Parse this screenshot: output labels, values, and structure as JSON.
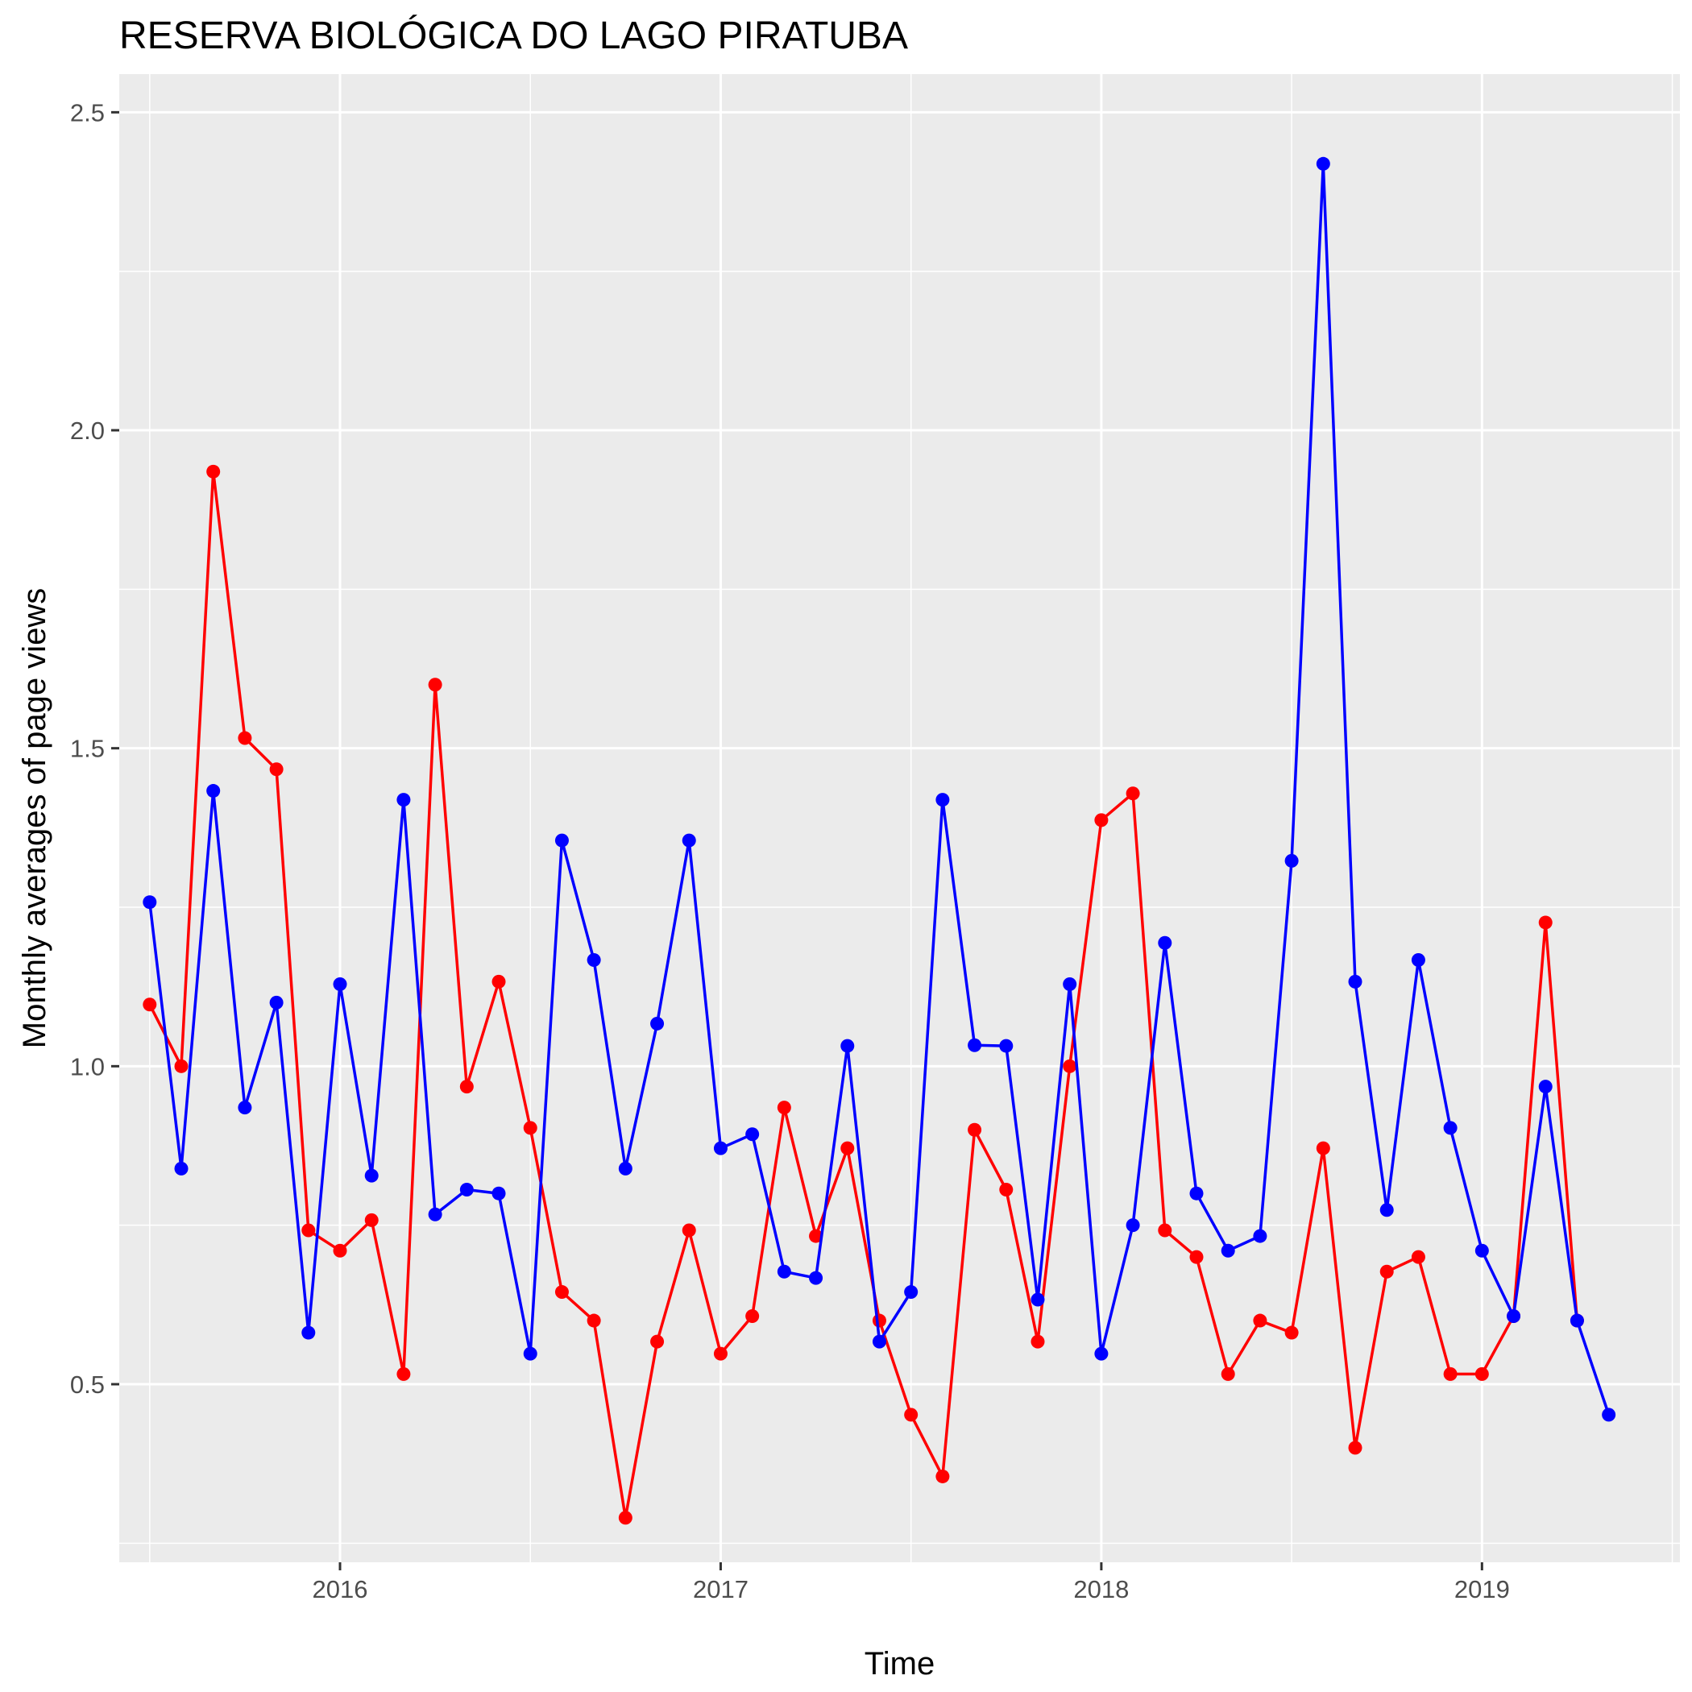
{
  "chart_data": {
    "type": "line",
    "title": "RESERVA BIOLÓGICA DO LAGO PIRATUBA",
    "xlabel": "Time",
    "ylabel": "Monthly averages of page views",
    "xlim": [
      2015.42,
      2019.52
    ],
    "ylim": [
      0.22,
      2.56
    ],
    "x_ticks": [
      {
        "value": 2016,
        "label": "2016"
      },
      {
        "value": 2017,
        "label": "2017"
      },
      {
        "value": 2018,
        "label": "2018"
      },
      {
        "value": 2019,
        "label": "2019"
      }
    ],
    "y_ticks": [
      {
        "value": 0.5,
        "label": "0.5"
      },
      {
        "value": 1.0,
        "label": "1.0"
      },
      {
        "value": 1.5,
        "label": "1.5"
      },
      {
        "value": 2.0,
        "label": "2.0"
      },
      {
        "value": 2.5,
        "label": "2.5"
      }
    ],
    "grid": true,
    "legend": "none",
    "background_color": "#EBEBEB",
    "grid_color": "#FFFFFF",
    "series": [
      {
        "color": "#FF0000",
        "x": [
          2015.5,
          2015.583,
          2015.667,
          2015.75,
          2015.833,
          2015.917,
          2016.0,
          2016.083,
          2016.167,
          2016.25,
          2016.333,
          2016.417,
          2016.5,
          2016.583,
          2016.667,
          2016.75,
          2016.833,
          2016.917,
          2017.0,
          2017.083,
          2017.167,
          2017.25,
          2017.333,
          2017.417,
          2017.5,
          2017.583,
          2017.667,
          2017.75,
          2017.833,
          2017.917,
          2018.0,
          2018.083,
          2018.167,
          2018.25,
          2018.333,
          2018.417,
          2018.5,
          2018.583,
          2018.667,
          2018.75,
          2018.833,
          2018.917,
          2019.0,
          2019.083,
          2019.167,
          2019.25
        ],
        "values": [
          1.097,
          1.0,
          1.935,
          1.516,
          1.467,
          0.742,
          0.71,
          0.758,
          0.516,
          1.6,
          0.968,
          1.133,
          0.903,
          0.645,
          0.6,
          0.29,
          0.567,
          0.742,
          0.548,
          0.607,
          0.935,
          0.733,
          0.871,
          0.6,
          0.452,
          0.355,
          0.9,
          0.806,
          0.567,
          1.0,
          1.387,
          1.429,
          0.742,
          0.7,
          0.516,
          0.6,
          0.581,
          0.871,
          0.4,
          0.677,
          0.7,
          0.516,
          0.516,
          0.607,
          1.226,
          0.6
        ]
      },
      {
        "color": "#0000FF",
        "x": [
          2015.5,
          2015.583,
          2015.667,
          2015.75,
          2015.833,
          2015.917,
          2016.0,
          2016.083,
          2016.167,
          2016.25,
          2016.333,
          2016.417,
          2016.5,
          2016.583,
          2016.667,
          2016.75,
          2016.833,
          2016.917,
          2017.0,
          2017.083,
          2017.167,
          2017.25,
          2017.333,
          2017.417,
          2017.5,
          2017.583,
          2017.667,
          2017.75,
          2017.833,
          2017.917,
          2018.0,
          2018.083,
          2018.167,
          2018.25,
          2018.333,
          2018.417,
          2018.5,
          2018.583,
          2018.667,
          2018.75,
          2018.833,
          2018.917,
          2019.0,
          2019.083,
          2019.167,
          2019.25,
          2019.333
        ],
        "values": [
          1.258,
          0.839,
          1.433,
          0.935,
          1.1,
          0.581,
          1.129,
          0.828,
          1.419,
          0.767,
          0.806,
          0.8,
          0.548,
          1.355,
          1.167,
          0.839,
          1.067,
          1.355,
          0.871,
          0.893,
          0.677,
          0.667,
          1.032,
          0.567,
          0.645,
          1.419,
          1.033,
          1.032,
          0.633,
          1.129,
          0.548,
          0.75,
          1.194,
          0.8,
          0.71,
          0.733,
          1.323,
          2.419,
          1.133,
          0.774,
          1.167,
          0.903,
          0.71,
          0.607,
          0.968,
          0.6,
          0.452
        ]
      }
    ]
  }
}
